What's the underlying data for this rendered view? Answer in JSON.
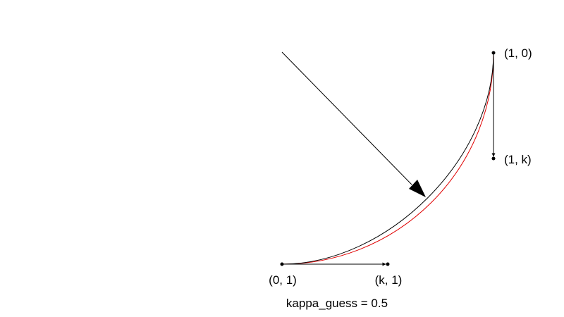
{
  "diagram": {
    "points": {
      "p00": "(0, 1)",
      "pk0": "(k, 1)",
      "p10": "(1, 0)",
      "p1k": "(1, k)"
    },
    "caption": "kappa_guess = 0.5"
  },
  "colors": {
    "ink": "#000000",
    "exact_arc": "#e00000",
    "approx_curve": "#000000"
  }
}
